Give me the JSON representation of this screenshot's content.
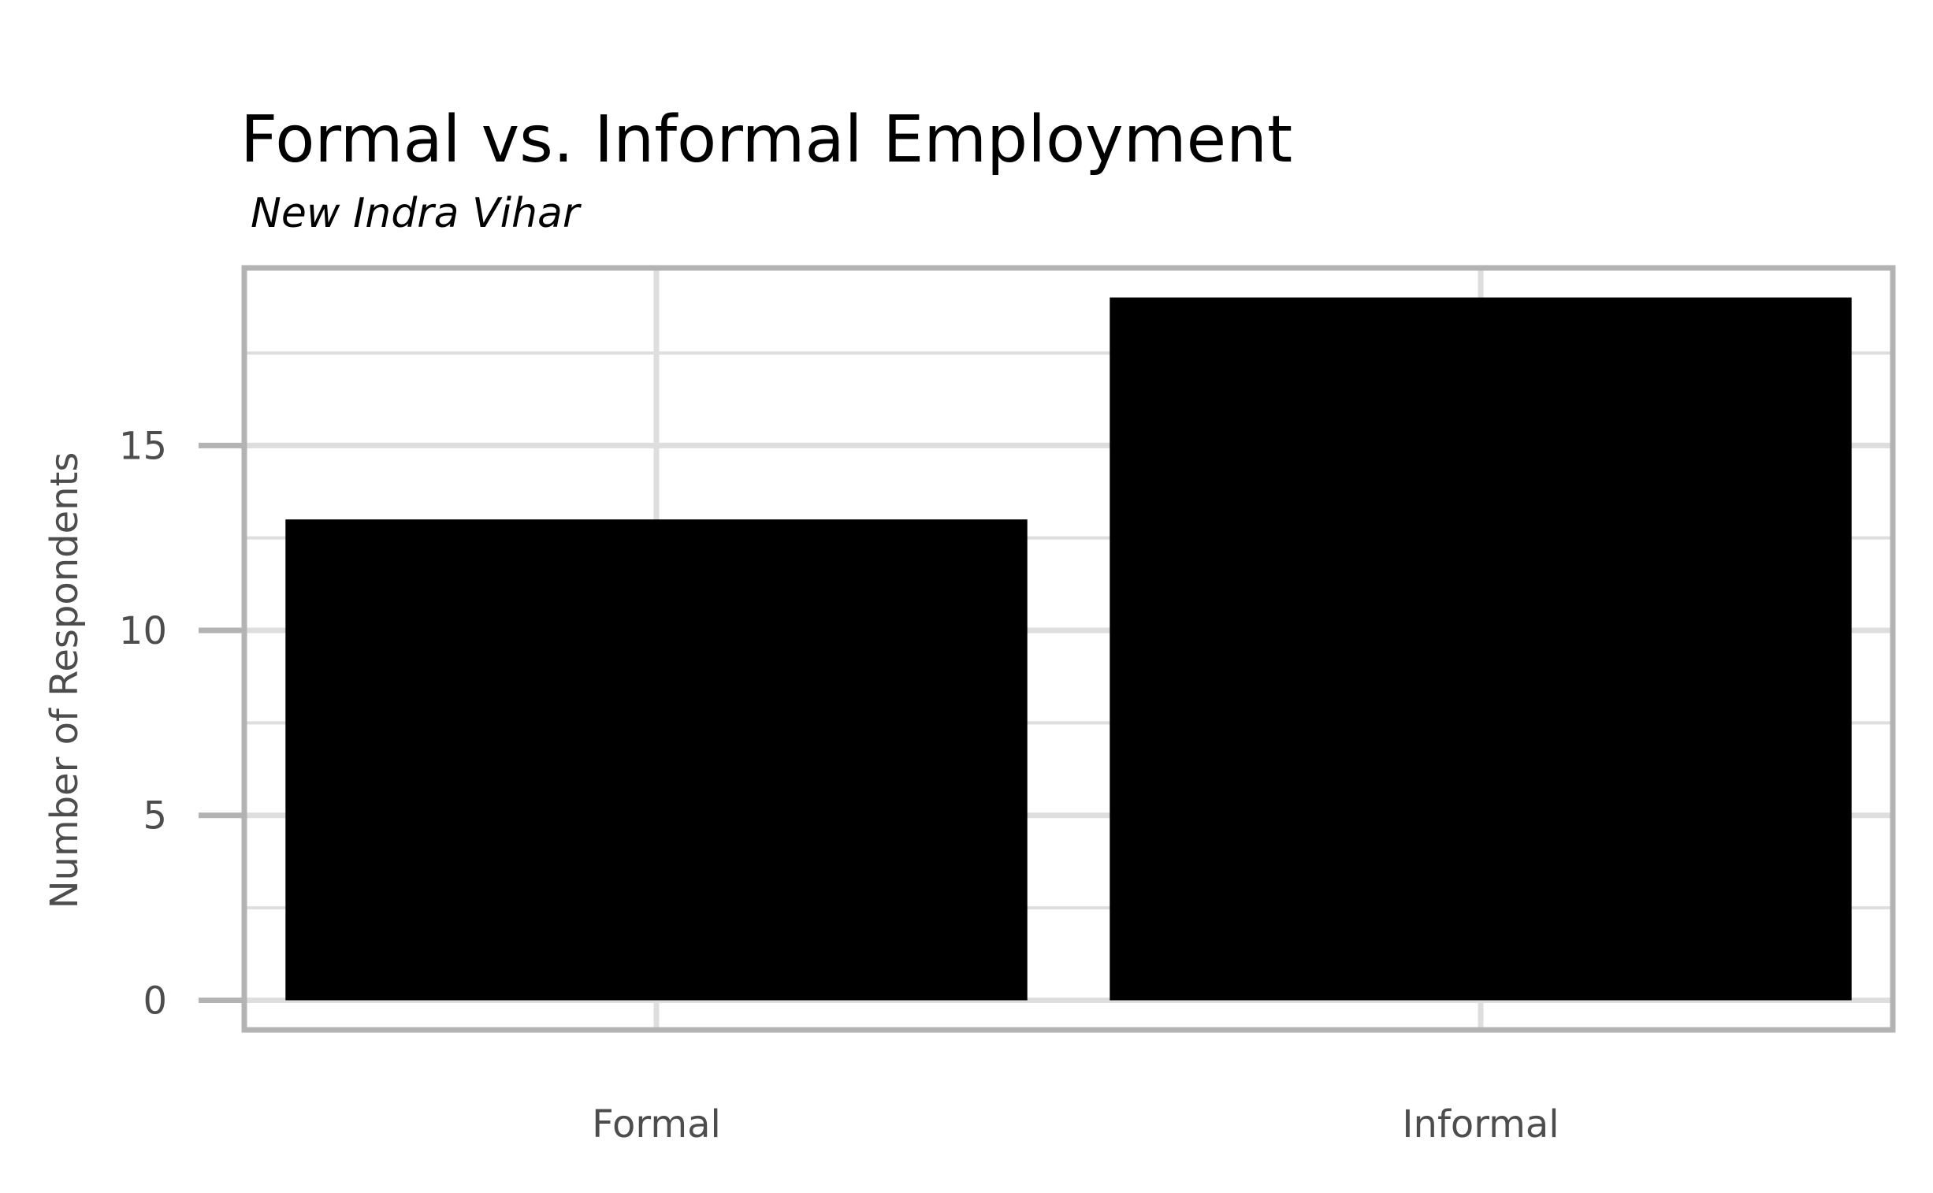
{
  "chart_data": {
    "type": "bar",
    "title": "Formal vs. Informal Employment",
    "subtitle": "New Indra Vihar",
    "xlabel": "",
    "ylabel": "Number of Respondents",
    "categories": [
      "Formal",
      "Informal"
    ],
    "values": [
      13,
      19
    ],
    "ylim": [
      -0.8,
      19.8
    ],
    "yticks": [
      0,
      5,
      10,
      15
    ],
    "grid": true,
    "bar_color": "#000000",
    "grid_color": "#dedede",
    "panel_border_color": "#b3b3b3"
  }
}
